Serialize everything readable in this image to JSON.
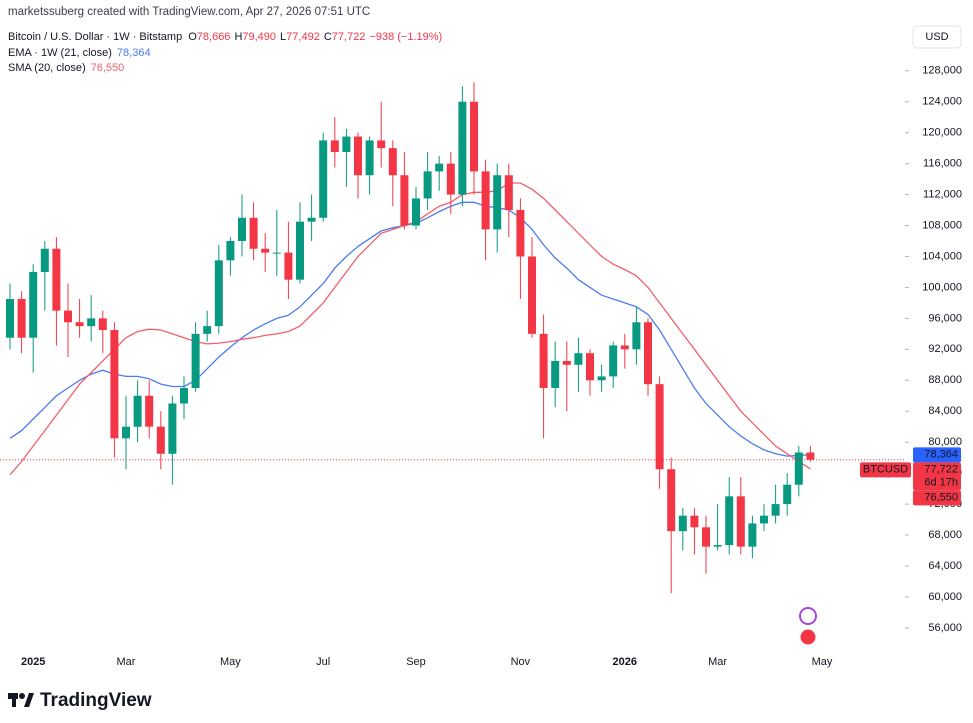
{
  "header": {
    "credit": "marketssuberg created with TradingView.com, Apr 27, 2026 07:51 UTC",
    "branding": "TradingView"
  },
  "chart_data": {
    "type": "candlestick",
    "title": "Bitcoin / U.S. Dollar · 1W · Bitstamp",
    "ohlc_readout": [
      {
        "key": "O",
        "text": "78,666"
      },
      {
        "key": "H",
        "text": "79,490"
      },
      {
        "key": "L",
        "text": "77,492"
      },
      {
        "key": "C",
        "text": "77,722"
      }
    ],
    "change": "−938 (−1.19%)",
    "currency": "USD",
    "up_color": "#089981",
    "down_color": "#f23645",
    "categories": [
      null,
      null,
      "2025",
      null,
      null,
      null,
      null,
      null,
      null,
      null,
      "Mar",
      null,
      null,
      null,
      null,
      null,
      null,
      null,
      null,
      "May",
      null,
      null,
      null,
      null,
      null,
      null,
      null,
      "Jul",
      null,
      null,
      null,
      null,
      null,
      null,
      null,
      "Sep",
      null,
      null,
      null,
      null,
      null,
      null,
      null,
      null,
      "Nov",
      null,
      null,
      null,
      null,
      null,
      null,
      null,
      null,
      "2026",
      null,
      null,
      null,
      null,
      null,
      null,
      null,
      "Mar",
      null,
      null,
      null,
      null,
      null,
      null,
      null,
      null,
      "May"
    ],
    "open": [
      93500,
      98500,
      93500,
      102000,
      105000,
      97000,
      95500,
      95000,
      96000,
      94500,
      80500,
      82000,
      86000,
      82000,
      78500,
      85000,
      87000,
      94000,
      95000,
      103500,
      106000,
      109000,
      105000,
      104500,
      104500,
      101000,
      108500,
      109000,
      119000,
      117500,
      119500,
      114500,
      119000,
      118000,
      114500,
      108000,
      111500,
      115000,
      116000,
      112000,
      124000,
      115000,
      107500,
      114500,
      110000,
      104000,
      94000,
      87000,
      90500,
      90000,
      91500,
      88000,
      88500,
      92500,
      92000,
      95500,
      87500,
      76500,
      68500,
      70500,
      69000,
      66500,
      66700,
      73000,
      66500,
      69500,
      70500,
      72000,
      74500,
      78666,
      null
    ],
    "high": [
      100500,
      99500,
      103000,
      106000,
      106500,
      100500,
      98500,
      99000,
      97000,
      95500,
      86000,
      88000,
      88000,
      84000,
      86000,
      88500,
      95500,
      97000,
      105500,
      106500,
      112000,
      111000,
      107000,
      110000,
      108500,
      111000,
      112000,
      120000,
      122000,
      120500,
      120000,
      119500,
      124000,
      119000,
      117500,
      113000,
      117500,
      117000,
      117500,
      126000,
      126500,
      116500,
      116000,
      116000,
      111500,
      106500,
      96500,
      93000,
      93000,
      93500,
      92000,
      90000,
      93000,
      94000,
      97500,
      96000,
      88500,
      78000,
      71500,
      71500,
      70500,
      72000,
      75500,
      75500,
      70500,
      72000,
      74500,
      76000,
      79500,
      79490,
      null
    ],
    "low": [
      92000,
      91500,
      89000,
      97000,
      92500,
      91000,
      93500,
      93000,
      91500,
      78000,
      76500,
      80000,
      80500,
      76500,
      74500,
      83000,
      86500,
      93000,
      94000,
      101500,
      104000,
      103500,
      102000,
      101500,
      98500,
      100500,
      106000,
      108500,
      115500,
      113000,
      111500,
      112000,
      115500,
      110500,
      107500,
      107500,
      110000,
      112500,
      109500,
      110500,
      112000,
      103500,
      104500,
      106500,
      98500,
      93500,
      80500,
      84500,
      84000,
      86500,
      86000,
      86500,
      87000,
      89500,
      90000,
      86000,
      74000,
      60500,
      66000,
      65500,
      63000,
      66000,
      65500,
      65500,
      65000,
      68500,
      69500,
      70500,
      73000,
      77492,
      null
    ],
    "close": [
      98500,
      93500,
      102000,
      105000,
      97000,
      95500,
      95000,
      96000,
      94500,
      80500,
      82000,
      86000,
      82000,
      78500,
      85000,
      87000,
      94000,
      95000,
      103500,
      106000,
      109000,
      105000,
      104500,
      104500,
      101000,
      108500,
      109000,
      119000,
      117500,
      119500,
      114500,
      119000,
      118000,
      114500,
      108000,
      111500,
      115000,
      116000,
      112000,
      124000,
      115000,
      107500,
      114500,
      110000,
      104000,
      94000,
      87000,
      90500,
      90000,
      91500,
      88000,
      88500,
      92500,
      92000,
      95500,
      87500,
      76500,
      68500,
      70500,
      69000,
      66500,
      66700,
      73000,
      66500,
      69500,
      70500,
      72000,
      74500,
      78666,
      77722,
      null
    ],
    "series": [
      {
        "name": "EMA · 1W (21, close)",
        "color": "#4a7cf0",
        "values": [
          80500,
          81500,
          83000,
          84500,
          86000,
          87000,
          88000,
          88800,
          89300,
          88800,
          88500,
          88500,
          88200,
          87500,
          87200,
          87200,
          88000,
          89500,
          91000,
          92300,
          93500,
          94500,
          95300,
          96000,
          96400,
          97500,
          99000,
          100500,
          102500,
          104000,
          105300,
          106300,
          107300,
          107700,
          108000,
          108300,
          109000,
          109800,
          110500,
          111000,
          111000,
          110500,
          110300,
          110000,
          109000,
          107500,
          105500,
          103800,
          102500,
          101000,
          100000,
          99000,
          98500,
          98000,
          97500,
          96500,
          94500,
          92000,
          89500,
          87000,
          85000,
          83500,
          82000,
          80800,
          79800,
          79000,
          78500,
          78200,
          78300,
          78364,
          null
        ]
      },
      {
        "name": "SMA (20, close)",
        "color": "#f0606a",
        "values": [
          75800,
          77500,
          79500,
          81500,
          83500,
          85500,
          87500,
          89000,
          90500,
          92000,
          93500,
          94300,
          94600,
          94500,
          94000,
          93500,
          93000,
          92700,
          92800,
          93000,
          93300,
          93500,
          93800,
          94000,
          94300,
          95000,
          96500,
          98000,
          100000,
          102000,
          104000,
          105500,
          107000,
          107500,
          108000,
          108500,
          109500,
          110500,
          111000,
          112000,
          112300,
          112300,
          112500,
          113500,
          113500,
          112700,
          111500,
          110000,
          108500,
          107000,
          105500,
          104000,
          103000,
          102300,
          101500,
          100000,
          98000,
          96000,
          94000,
          92000,
          90000,
          88000,
          86000,
          84000,
          82500,
          81000,
          79500,
          78500,
          77500,
          76550,
          null
        ]
      }
    ],
    "price_tags": [
      {
        "value": 78364,
        "label": "78,364",
        "color": "#2962ff"
      },
      {
        "value": 77722,
        "label": "77,722",
        "symbol": "BTCUSD",
        "countdown": "6d 17h",
        "color": "#f23645"
      },
      {
        "value": 76550,
        "label": "76,550",
        "color": "#f23645"
      }
    ],
    "ylim": [
      53400,
      136500
    ],
    "yticks": [
      {
        "value": 56000,
        "label": "56,000"
      },
      {
        "value": 60000,
        "label": "60,000"
      },
      {
        "value": 64000,
        "label": "64,000"
      },
      {
        "value": 68000,
        "label": "68,000"
      },
      {
        "value": 72000,
        "label": "72,000"
      },
      {
        "value": 76000,
        "label": "76,000"
      },
      {
        "value": 80000,
        "label": "80,000"
      },
      {
        "value": 84000,
        "label": "84,000"
      },
      {
        "value": 88000,
        "label": "88,000"
      },
      {
        "value": 92000,
        "label": "92,000"
      },
      {
        "value": 96000,
        "label": "96,000"
      },
      {
        "value": 100000,
        "label": "100,000"
      },
      {
        "value": 104000,
        "label": "104,000"
      },
      {
        "value": 108000,
        "label": "108,000"
      },
      {
        "value": 112000,
        "label": "112,000"
      },
      {
        "value": 116000,
        "label": "116,000"
      },
      {
        "value": 120000,
        "label": "120,000"
      },
      {
        "value": 124000,
        "label": "124,000"
      },
      {
        "value": 128000,
        "label": "128,000"
      }
    ],
    "grid": false
  }
}
